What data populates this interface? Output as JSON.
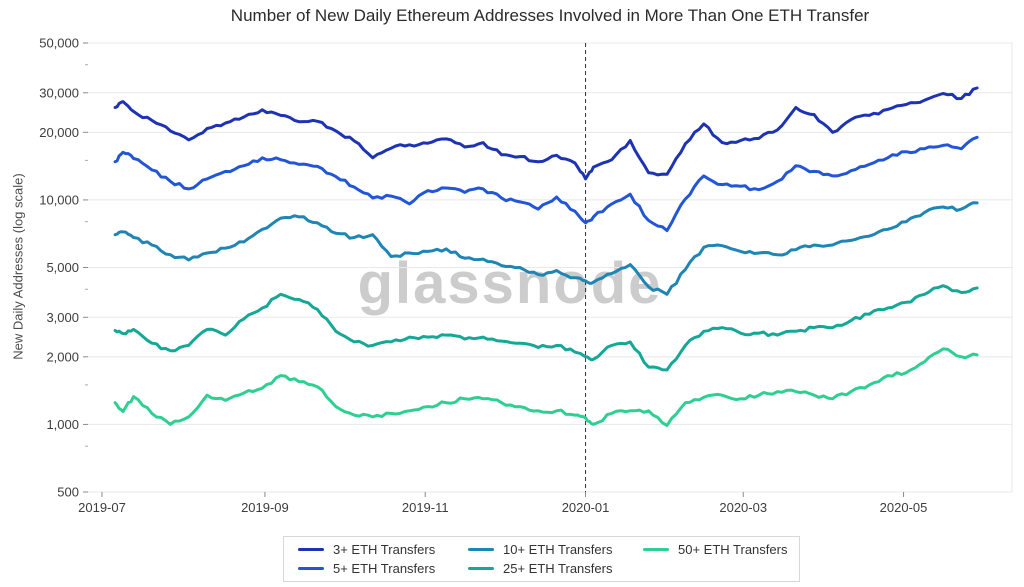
{
  "watermark": "glassnode",
  "colors": {
    "grid": "#e8e8e8",
    "tick": "#8a8a8a",
    "minor_tick": "#aaaaaa",
    "axis_text": "#3d3d3d",
    "vline": "#333333",
    "watermark": "#cccccc",
    "legend_border": "#d8d8d8"
  },
  "chart_data": {
    "type": "line",
    "title": "Number of New Daily Ethereum Addresses Involved in More Than One ETH Transfer",
    "xlabel": "",
    "ylabel": "New Daily Addresses (log scale)",
    "yscale": "log",
    "ylim": [
      500,
      50000
    ],
    "grid": "horizontal",
    "legend_position": "bottom",
    "ytick_values": [
      50000,
      30000,
      20000,
      10000,
      5000,
      3000,
      2000,
      1000,
      500
    ],
    "ytick_labels": [
      "50,000",
      "30,000",
      "20,000",
      "10,000",
      "5,000",
      "3,000",
      "2,000",
      "1,000",
      "500"
    ],
    "ytick_minor": [
      40000,
      15000,
      8000,
      4000,
      1500,
      800
    ],
    "xtick_dates": [
      "2019-07-01",
      "2019-09-01",
      "2019-11-01",
      "2020-01-01",
      "2020-03-01",
      "2020-05-01"
    ],
    "xtick_labels": [
      "2019-07",
      "2019-09",
      "2019-11",
      "2020-01",
      "2020-03",
      "2020-05"
    ],
    "vline": {
      "date": "2020-01-01",
      "style": "dashed"
    },
    "x_dates": [
      "2019-07-06",
      "2019-07-09",
      "2019-07-13",
      "2019-07-20",
      "2019-07-27",
      "2019-08-03",
      "2019-08-10",
      "2019-08-17",
      "2019-08-24",
      "2019-08-31",
      "2019-09-07",
      "2019-09-14",
      "2019-09-21",
      "2019-09-28",
      "2019-10-05",
      "2019-10-12",
      "2019-10-19",
      "2019-10-26",
      "2019-11-02",
      "2019-11-09",
      "2019-11-16",
      "2019-11-23",
      "2019-11-30",
      "2019-12-07",
      "2019-12-14",
      "2019-12-21",
      "2019-12-28",
      "2020-01-01",
      "2020-01-04",
      "2020-01-11",
      "2020-01-18",
      "2020-01-25",
      "2020-02-01",
      "2020-02-08",
      "2020-02-15",
      "2020-02-22",
      "2020-02-29",
      "2020-03-07",
      "2020-03-14",
      "2020-03-21",
      "2020-03-28",
      "2020-04-04",
      "2020-04-11",
      "2020-04-18",
      "2020-04-25",
      "2020-05-02",
      "2020-05-09",
      "2020-05-16",
      "2020-05-23",
      "2020-05-29"
    ],
    "series": [
      {
        "name": "3+ ETH Transfers",
        "color": "#1d33b4",
        "values": [
          25800,
          27400,
          24800,
          22600,
          20300,
          18500,
          20800,
          22000,
          23400,
          25200,
          23800,
          22300,
          22400,
          20300,
          18300,
          15400,
          17000,
          17600,
          17900,
          18700,
          17200,
          18000,
          15900,
          15600,
          14800,
          15800,
          14600,
          12400,
          14000,
          15100,
          18400,
          13200,
          13000,
          17800,
          21800,
          18000,
          18400,
          18800,
          20500,
          25800,
          24000,
          20000,
          22800,
          23800,
          25300,
          26600,
          27800,
          29800,
          28300,
          31500
        ]
      },
      {
        "name": "5+ ETH Transfers",
        "color": "#2356d7",
        "values": [
          14800,
          16300,
          15300,
          13600,
          12100,
          11200,
          12400,
          13400,
          14200,
          15400,
          15100,
          14400,
          14100,
          12700,
          11400,
          10200,
          10400,
          9600,
          11000,
          11300,
          10800,
          11200,
          10200,
          9800,
          9100,
          10300,
          8900,
          7900,
          8400,
          9600,
          10600,
          8100,
          7300,
          10100,
          12800,
          11700,
          11500,
          11100,
          12100,
          14200,
          13400,
          12800,
          13500,
          14400,
          15400,
          16400,
          16900,
          17500,
          16900,
          19000
        ]
      },
      {
        "name": "10+ ETH Transfers",
        "color": "#1e85b4",
        "values": [
          7000,
          7200,
          6800,
          6300,
          5700,
          5400,
          5800,
          6100,
          6500,
          7400,
          8300,
          8400,
          7900,
          7100,
          6800,
          7000,
          5600,
          5800,
          5900,
          6050,
          5500,
          5450,
          5100,
          5000,
          4650,
          4850,
          4500,
          4360,
          4300,
          4700,
          5150,
          4100,
          3800,
          4900,
          6150,
          6250,
          5900,
          5800,
          5700,
          6000,
          6300,
          6300,
          6600,
          6900,
          7400,
          8000,
          8800,
          9300,
          9100,
          9700
        ]
      },
      {
        "name": "25+ ETH Transfers",
        "color": "#15a897",
        "values": [
          2620,
          2540,
          2650,
          2300,
          2130,
          2250,
          2650,
          2500,
          2950,
          3300,
          3800,
          3600,
          3250,
          2600,
          2330,
          2250,
          2330,
          2450,
          2450,
          2500,
          2400,
          2450,
          2350,
          2300,
          2200,
          2250,
          2100,
          2000,
          1950,
          2250,
          2330,
          1800,
          1750,
          2250,
          2600,
          2700,
          2550,
          2550,
          2500,
          2600,
          2700,
          2700,
          2900,
          3100,
          3300,
          3500,
          3800,
          4150,
          3870,
          4050
        ]
      },
      {
        "name": "50+ ETH Transfers",
        "color": "#2ecf92",
        "values": [
          1250,
          1140,
          1330,
          1120,
          1000,
          1080,
          1350,
          1280,
          1380,
          1450,
          1650,
          1550,
          1470,
          1200,
          1100,
          1080,
          1120,
          1150,
          1200,
          1250,
          1300,
          1300,
          1250,
          1200,
          1150,
          1150,
          1100,
          1070,
          1000,
          1120,
          1150,
          1150,
          990,
          1250,
          1320,
          1350,
          1300,
          1350,
          1400,
          1400,
          1350,
          1300,
          1400,
          1500,
          1650,
          1700,
          1900,
          2170,
          2000,
          2040
        ]
      }
    ]
  }
}
